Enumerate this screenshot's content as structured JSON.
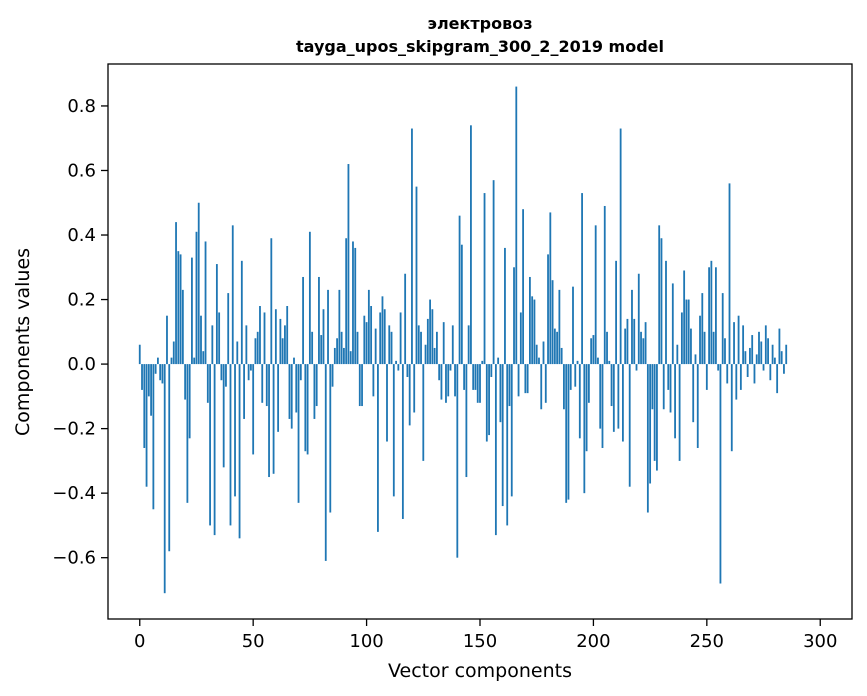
{
  "chart_data": {
    "type": "bar",
    "title_line1": "электровоз",
    "title_line2": "tayga_upos_skipgram_300_2_2019 model",
    "xlabel": "Vector components",
    "ylabel": "Components values",
    "xlim": [
      -14,
      314
    ],
    "ylim": [
      -0.79,
      0.93
    ],
    "xticks": [
      0,
      50,
      100,
      150,
      200,
      250,
      300
    ],
    "xtick_labels": [
      "0",
      "50",
      "100",
      "150",
      "200",
      "250",
      "300"
    ],
    "yticks": [
      -0.6,
      -0.4,
      -0.2,
      0.0,
      0.2,
      0.4,
      0.6,
      0.8
    ],
    "ytick_labels": [
      "−0.6",
      "−0.4",
      "−0.2",
      "0.0",
      "0.2",
      "0.4",
      "0.6",
      "0.8"
    ],
    "bar_color": "#1f77b4",
    "grid": false,
    "values": [
      0.06,
      -0.08,
      -0.26,
      -0.38,
      -0.1,
      -0.16,
      -0.45,
      -0.03,
      0.02,
      -0.05,
      -0.06,
      -0.71,
      0.15,
      -0.58,
      0.02,
      0.07,
      0.44,
      0.35,
      0.34,
      0.23,
      -0.11,
      -0.43,
      -0.23,
      0.33,
      0.02,
      0.41,
      0.5,
      0.15,
      0.04,
      0.38,
      -0.12,
      -0.5,
      0.12,
      -0.53,
      0.31,
      0.16,
      -0.05,
      -0.32,
      -0.07,
      0.22,
      -0.5,
      0.43,
      -0.41,
      0.07,
      -0.54,
      0.32,
      -0.17,
      0.12,
      -0.05,
      -0.02,
      -0.28,
      0.08,
      0.1,
      0.18,
      -0.12,
      0.16,
      -0.13,
      -0.35,
      0.39,
      -0.34,
      0.17,
      -0.21,
      0.14,
      0.08,
      0.12,
      0.18,
      -0.17,
      -0.2,
      0.02,
      -0.15,
      -0.43,
      -0.05,
      0.27,
      -0.27,
      -0.28,
      0.41,
      0.1,
      -0.17,
      -0.13,
      0.27,
      0.09,
      0.17,
      -0.61,
      0.23,
      -0.46,
      -0.07,
      0.05,
      0.08,
      0.23,
      0.1,
      0.05,
      0.39,
      0.62,
      0.04,
      0.38,
      0.36,
      0.1,
      -0.13,
      -0.13,
      0.15,
      0.13,
      0.23,
      0.18,
      -0.1,
      0.11,
      -0.52,
      0.16,
      0.21,
      0.17,
      -0.24,
      0.12,
      0.1,
      -0.41,
      0.01,
      -0.02,
      0.16,
      -0.48,
      0.28,
      -0.04,
      -0.19,
      0.73,
      -0.15,
      0.55,
      0.12,
      0.1,
      -0.3,
      0.06,
      0.14,
      0.2,
      0.17,
      0.05,
      0.1,
      -0.05,
      -0.11,
      0.13,
      -0.12,
      -0.1,
      -0.02,
      0.12,
      -0.1,
      -0.6,
      0.46,
      0.37,
      -0.08,
      -0.35,
      0.12,
      0.74,
      -0.08,
      -0.08,
      -0.12,
      -0.12,
      0.01,
      0.53,
      -0.24,
      -0.22,
      -0.04,
      0.57,
      -0.53,
      0.02,
      -0.18,
      -0.44,
      0.36,
      -0.5,
      -0.13,
      -0.41,
      0.3,
      0.86,
      -0.1,
      0.16,
      0.48,
      -0.09,
      -0.09,
      0.27,
      0.21,
      0.2,
      0.06,
      0.02,
      -0.14,
      0.07,
      -0.12,
      0.34,
      0.47,
      0.26,
      0.11,
      0.1,
      0.23,
      0.05,
      -0.14,
      -0.43,
      -0.42,
      -0.08,
      0.24,
      -0.07,
      0.01,
      -0.23,
      0.53,
      -0.4,
      -0.27,
      -0.12,
      0.08,
      0.09,
      0.43,
      0.02,
      -0.2,
      -0.26,
      0.49,
      0.1,
      0.01,
      -0.13,
      -0.21,
      0.32,
      -0.2,
      0.73,
      -0.24,
      0.11,
      0.14,
      -0.38,
      0.23,
      0.14,
      -0.02,
      0.28,
      0.1,
      0.08,
      0.13,
      -0.46,
      -0.37,
      -0.14,
      -0.3,
      -0.33,
      0.43,
      0.39,
      -0.14,
      0.32,
      -0.08,
      -0.15,
      0.25,
      -0.23,
      0.06,
      -0.3,
      0.16,
      0.29,
      0.2,
      0.2,
      0.11,
      -0.18,
      0.03,
      -0.26,
      0.15,
      0.22,
      0.1,
      -0.08,
      0.3,
      0.32,
      0.1,
      0.3,
      -0.02,
      -0.68,
      0.22,
      0.08,
      -0.06,
      0.56,
      -0.27,
      0.13,
      -0.11,
      0.15,
      -0.08,
      0.12,
      0.04,
      -0.04,
      0.05,
      0.09,
      -0.06,
      0.03,
      0.1,
      0.07,
      -0.02,
      0.12,
      0.08,
      -0.05,
      0.06,
      0.02,
      -0.09,
      0.11,
      0.04,
      -0.03,
      0.06
    ]
  }
}
